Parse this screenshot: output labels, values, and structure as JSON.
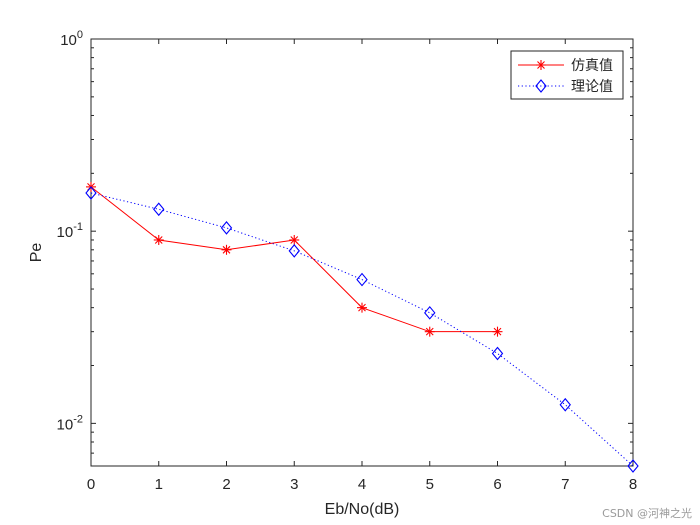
{
  "chart_data": {
    "type": "line",
    "title": "",
    "xlabel": "Eb/No(dB)",
    "ylabel": "Pe",
    "xlim": [
      0,
      8
    ],
    "ylim": [
      0.006,
      1
    ],
    "yscale": "log",
    "grid": false,
    "legend_position": "top-right",
    "x_ticks": [
      0,
      1,
      2,
      3,
      4,
      5,
      6,
      7,
      8
    ],
    "x_tick_labels": [
      "0",
      "1",
      "2",
      "3",
      "4",
      "5",
      "6",
      "7",
      "8"
    ],
    "y_ticks": [
      0.01,
      0.1,
      1
    ],
    "y_tick_labels": [
      {
        "base": "10",
        "exp": "-2"
      },
      {
        "base": "10",
        "exp": "-1"
      },
      {
        "base": "10",
        "exp": "0"
      }
    ],
    "series": [
      {
        "name": "仿真值",
        "color": "#ff0000",
        "line_style": "solid",
        "marker": "asterisk",
        "x": [
          0,
          1,
          2,
          3,
          4,
          5,
          6
        ],
        "y": [
          0.17,
          0.09,
          0.08,
          0.09,
          0.04,
          0.03,
          0.03
        ]
      },
      {
        "name": "理论值",
        "color": "#0000ff",
        "line_style": "dotted",
        "marker": "diamond",
        "x": [
          0,
          1,
          2,
          3,
          4,
          5,
          6,
          7,
          8
        ],
        "y": [
          0.158,
          0.13,
          0.104,
          0.079,
          0.056,
          0.0376,
          0.0231,
          0.0125,
          0.006
        ]
      }
    ]
  },
  "watermark": "CSDN @河神之光"
}
